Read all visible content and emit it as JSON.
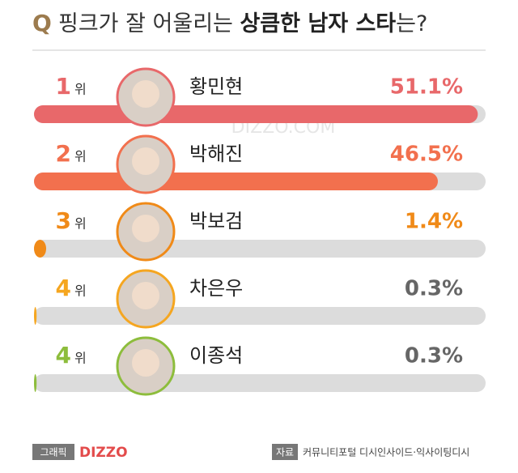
{
  "title": {
    "q": "Q",
    "parts": [
      "핑크가 잘 어울리는 ",
      "상큼한 남자 스타",
      "는?"
    ]
  },
  "watermark": "DIZZO.COM",
  "chart_data": {
    "type": "bar",
    "categories": [
      "황민현",
      "박해진",
      "박보검",
      "차은우",
      "이종석"
    ],
    "ranks": [
      1,
      2,
      3,
      4,
      4
    ],
    "rank_suffix": "위",
    "values": [
      51.1,
      46.5,
      1.4,
      0.3,
      0.3
    ],
    "value_labels": [
      "51.1%",
      "46.5%",
      "1.4%",
      "0.3%",
      "0.3%"
    ],
    "colors": [
      "#e8686a",
      "#f2704e",
      "#f08a18",
      "#f5a620",
      "#8dbd3c"
    ],
    "xlim": [
      0,
      52
    ]
  },
  "footer": {
    "graphic_label": "그래픽",
    "graphic_brand": "DIZZO",
    "source_label": "자료",
    "source": "커뮤니티포털 디시인사이드·익사이팅디시"
  }
}
